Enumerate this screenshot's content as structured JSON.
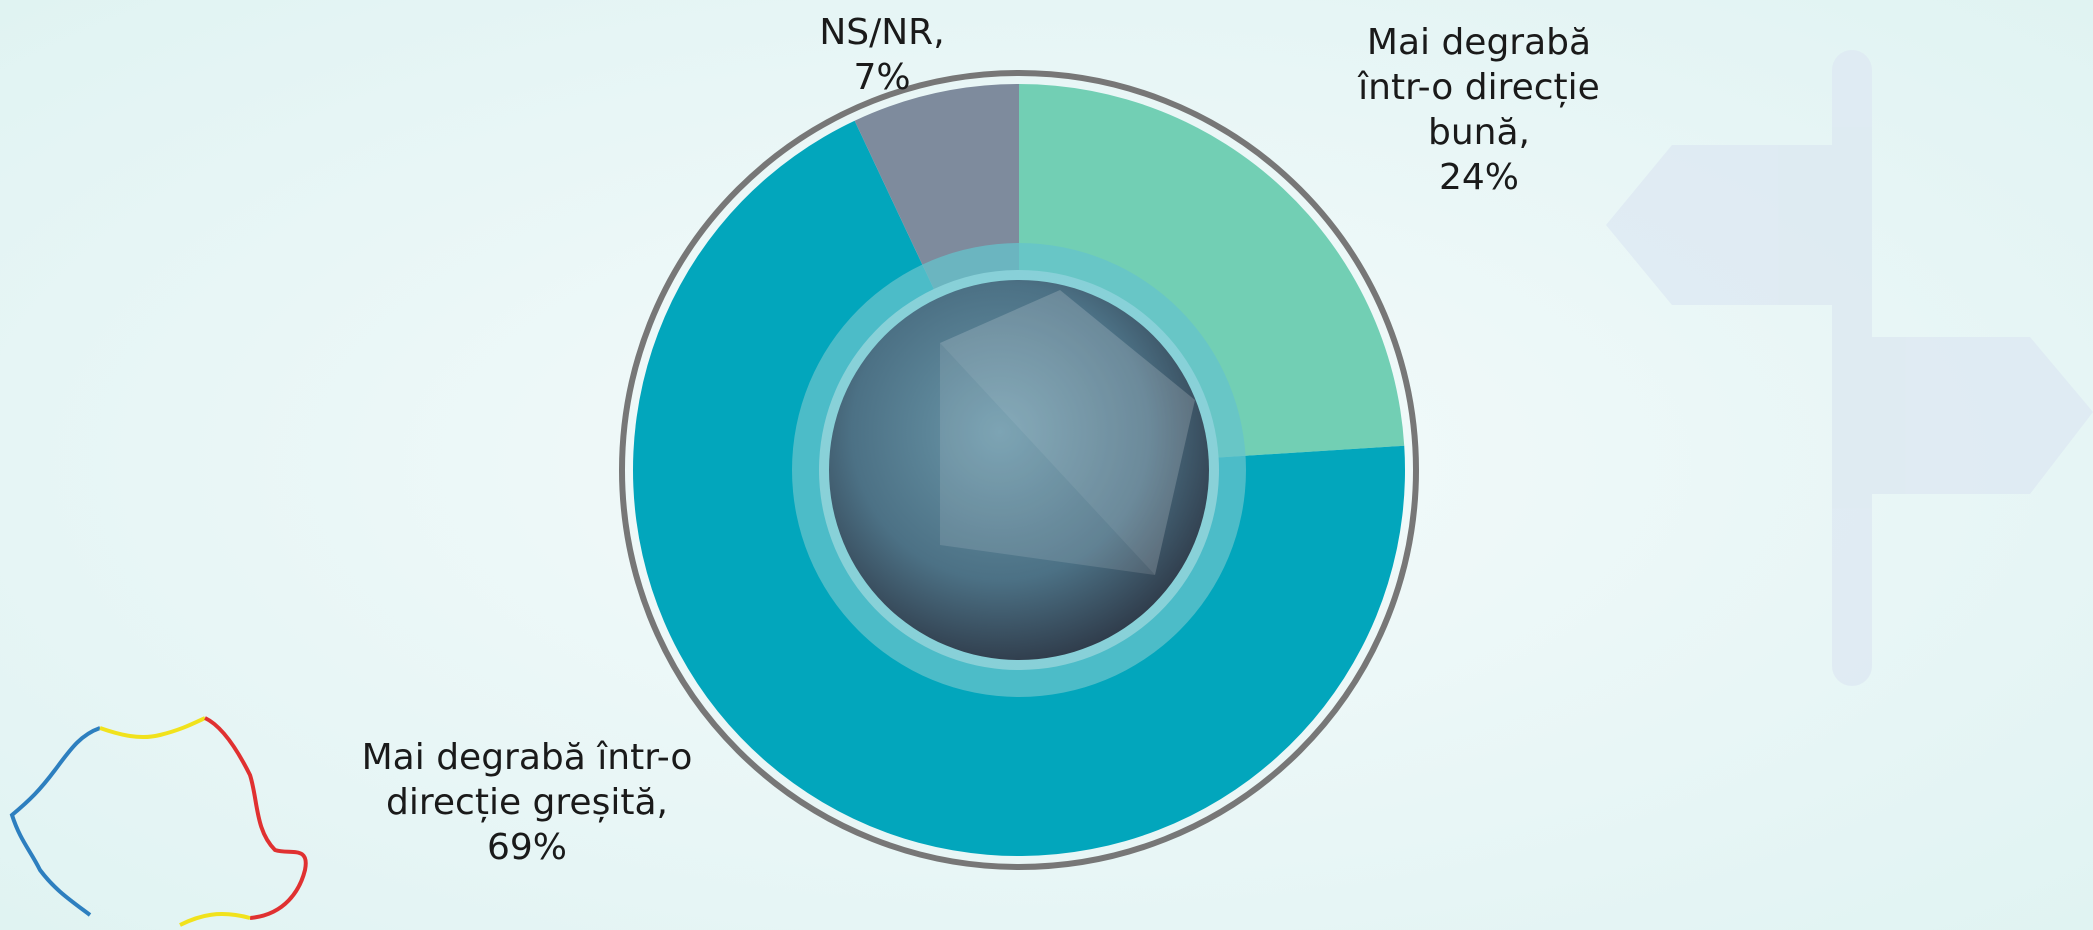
{
  "chart_data": {
    "type": "donut",
    "categories": [
      "Mai degrabă într-o direcție bună,",
      "Mai degrabă într-o direcție greșită,",
      "NS/NR,"
    ],
    "values": [
      24,
      69,
      7
    ],
    "value_labels": [
      "24%",
      "69%",
      "7%"
    ],
    "colors": [
      "#72cfb4",
      "#02a6bc",
      "#7e8b9d"
    ]
  }
}
